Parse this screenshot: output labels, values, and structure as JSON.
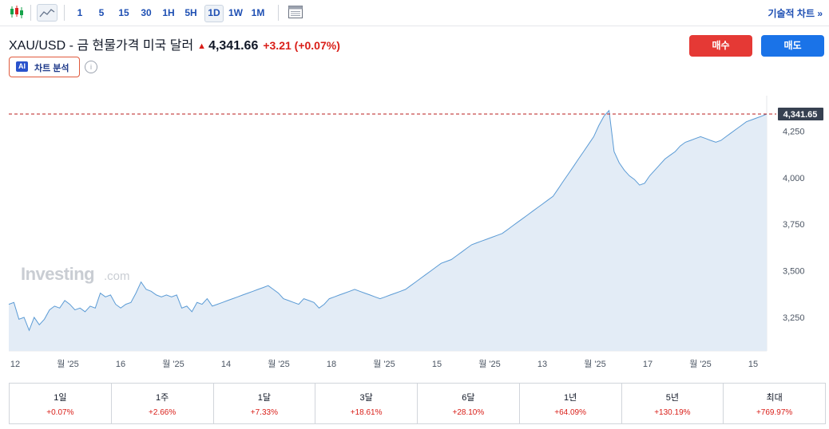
{
  "toolbar": {
    "icons": [
      "candlestick-icon",
      "area-chart-icon",
      "calendar-icon"
    ],
    "timeframes": [
      "1",
      "5",
      "15",
      "30",
      "1H",
      "5H",
      "1D",
      "1W",
      "1M"
    ],
    "active_timeframe": "1D",
    "technical_chart_link": "기술적 차트 »"
  },
  "header": {
    "instrument": "XAU/USD - 금 현물가격 미국 달러",
    "price": "4,341.66",
    "change": "+3.21 (+0.07%)",
    "buy_label": "매수",
    "sell_label": "매도",
    "ai_badge": "AI",
    "ai_label": "차트 분석",
    "info_glyph": "i"
  },
  "watermark": {
    "brand": "Investing",
    "suffix": ".com"
  },
  "chart_data": {
    "type": "area",
    "y_ticks": [
      3250,
      3500,
      3750,
      4000,
      4250
    ],
    "y_tick_labels": [
      "3,250",
      "3,500",
      "3,750",
      "4,000",
      "4,250"
    ],
    "ylim": [
      3070,
      4440
    ],
    "x_tick_labels": [
      "12",
      "월 '25",
      "16",
      "월 '25",
      "14",
      "월 '25",
      "18",
      "월 '25",
      "15",
      "월 '25",
      "13",
      "월 '25",
      "17",
      "월 '25",
      "15"
    ],
    "last_price_label": "4,341.65",
    "last_price": 4341.65,
    "values": [
      3320,
      3330,
      3240,
      3250,
      3180,
      3250,
      3210,
      3240,
      3290,
      3310,
      3300,
      3340,
      3320,
      3290,
      3300,
      3280,
      3310,
      3300,
      3380,
      3360,
      3370,
      3320,
      3300,
      3320,
      3330,
      3380,
      3440,
      3400,
      3390,
      3370,
      3360,
      3370,
      3360,
      3370,
      3300,
      3310,
      3280,
      3330,
      3320,
      3350,
      3310,
      3320,
      3330,
      3340,
      3350,
      3360,
      3370,
      3380,
      3390,
      3400,
      3410,
      3420,
      3400,
      3380,
      3350,
      3340,
      3330,
      3320,
      3350,
      3340,
      3330,
      3300,
      3320,
      3350,
      3360,
      3370,
      3380,
      3390,
      3400,
      3390,
      3380,
      3370,
      3360,
      3350,
      3360,
      3370,
      3380,
      3390,
      3400,
      3420,
      3440,
      3460,
      3480,
      3500,
      3520,
      3540,
      3550,
      3560,
      3580,
      3600,
      3620,
      3640,
      3650,
      3660,
      3670,
      3680,
      3690,
      3700,
      3720,
      3740,
      3760,
      3780,
      3800,
      3820,
      3840,
      3860,
      3880,
      3900,
      3940,
      3980,
      4020,
      4060,
      4100,
      4140,
      4180,
      4220,
      4280,
      4330,
      4360,
      4140,
      4080,
      4040,
      4010,
      3990,
      3960,
      3970,
      4010,
      4040,
      4070,
      4100,
      4120,
      4140,
      4170,
      4190,
      4200,
      4210,
      4220,
      4210,
      4200,
      4190,
      4200,
      4220,
      4240,
      4260,
      4280,
      4300,
      4310,
      4320,
      4330,
      4341.65
    ]
  },
  "performance": [
    {
      "period": "1일",
      "value": "+0.07%"
    },
    {
      "period": "1주",
      "value": "+2.66%"
    },
    {
      "period": "1달",
      "value": "+7.33%"
    },
    {
      "period": "3달",
      "value": "+18.61%"
    },
    {
      "period": "6달",
      "value": "+28.10%"
    },
    {
      "period": "1년",
      "value": "+64.09%"
    },
    {
      "period": "5년",
      "value": "+130.19%"
    },
    {
      "period": "최대",
      "value": "+769.97%"
    }
  ],
  "colors": {
    "line": "#5b9bd5",
    "area": "#e3ecf6",
    "up": "#d91e18",
    "buy": "#e53935",
    "sell": "#1a73e8",
    "price_tag": "#374151"
  }
}
